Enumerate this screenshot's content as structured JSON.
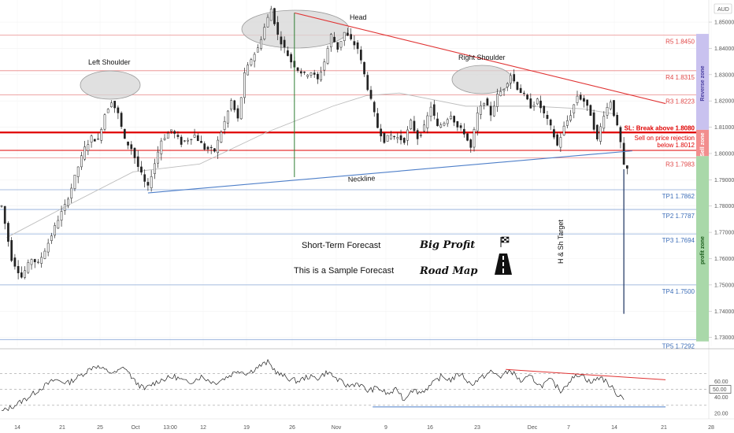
{
  "currency": "AUD",
  "chart_data": [
    {
      "type": "line",
      "subtype": "candlestick",
      "title": "",
      "xlabel": "",
      "ylabel": "",
      "x_ticks": [
        "14",
        "21",
        "25",
        "Oct",
        "13:00",
        "12",
        "19",
        "26",
        "Nov",
        "9",
        "16",
        "23",
        "Dec",
        "7",
        "14",
        "21",
        "28"
      ],
      "y_ticks": [
        "1.85000",
        "1.84000",
        "1.83000",
        "1.82000",
        "1.81000",
        "1.80000",
        "1.79000",
        "1.78000",
        "1.77000",
        "1.76000",
        "1.75000",
        "1.74000",
        "1.73000"
      ],
      "ylim": [
        1.7275,
        1.8575
      ],
      "grid": true,
      "price_path": [
        [
          0,
          1.78
        ],
        [
          3,
          1.76
        ],
        [
          6,
          1.753
        ],
        [
          9,
          1.76
        ],
        [
          11,
          1.758
        ],
        [
          14,
          1.766
        ],
        [
          17,
          1.775
        ],
        [
          19,
          1.78
        ],
        [
          21,
          1.787
        ],
        [
          23,
          1.795
        ],
        [
          25,
          1.802
        ],
        [
          27,
          1.806
        ],
        [
          29,
          1.805
        ],
        [
          31,
          1.815
        ],
        [
          33,
          1.82
        ],
        [
          35,
          1.815
        ],
        [
          37,
          1.805
        ],
        [
          39,
          1.802
        ],
        [
          41,
          1.795
        ],
        [
          43,
          1.789
        ],
        [
          44,
          1.787
        ],
        [
          45,
          1.792
        ],
        [
          48,
          1.805
        ],
        [
          51,
          1.809
        ],
        [
          54,
          1.804
        ],
        [
          58,
          1.807
        ],
        [
          61,
          1.802
        ],
        [
          64,
          1.801
        ],
        [
          67,
          1.812
        ],
        [
          69,
          1.82
        ],
        [
          71,
          1.813
        ],
        [
          73,
          1.83
        ],
        [
          75,
          1.836
        ],
        [
          77,
          1.84
        ],
        [
          79,
          1.848
        ],
        [
          81,
          1.855
        ],
        [
          83,
          1.845
        ],
        [
          85,
          1.84
        ],
        [
          87,
          1.835
        ],
        [
          89,
          1.832
        ],
        [
          91,
          1.83
        ],
        [
          93,
          1.831
        ],
        [
          95,
          1.828
        ],
        [
          97,
          1.835
        ],
        [
          99,
          1.845
        ],
        [
          101,
          1.84
        ],
        [
          103,
          1.846
        ],
        [
          105,
          1.843
        ],
        [
          107,
          1.84
        ],
        [
          109,
          1.83
        ],
        [
          111,
          1.82
        ],
        [
          113,
          1.81
        ],
        [
          115,
          1.805
        ],
        [
          117,
          1.807
        ],
        [
          119,
          1.806
        ],
        [
          121,
          1.805
        ],
        [
          123,
          1.812
        ],
        [
          125,
          1.806
        ],
        [
          127,
          1.81
        ],
        [
          129,
          1.818
        ],
        [
          131,
          1.81
        ],
        [
          133,
          1.812
        ],
        [
          135,
          1.815
        ],
        [
          137,
          1.81
        ],
        [
          139,
          1.808
        ],
        [
          141,
          1.802
        ],
        [
          143,
          1.815
        ],
        [
          145,
          1.82
        ],
        [
          147,
          1.815
        ],
        [
          149,
          1.822
        ],
        [
          151,
          1.825
        ],
        [
          153,
          1.83
        ],
        [
          155,
          1.825
        ],
        [
          157,
          1.822
        ],
        [
          159,
          1.818
        ],
        [
          161,
          1.82
        ],
        [
          163,
          1.815
        ],
        [
          165,
          1.81
        ],
        [
          167,
          1.803
        ],
        [
          169,
          1.81
        ],
        [
          171,
          1.815
        ],
        [
          173,
          1.822
        ],
        [
          175,
          1.82
        ],
        [
          177,
          1.815
        ],
        [
          179,
          1.805
        ],
        [
          181,
          1.815
        ],
        [
          183,
          1.82
        ],
        [
          185,
          1.81
        ],
        [
          186,
          1.804
        ],
        [
          187,
          1.795
        ],
        [
          188,
          1.794
        ]
      ],
      "moving_average": [
        [
          2,
          1.768
        ],
        [
          20,
          1.78
        ],
        [
          40,
          1.793
        ],
        [
          60,
          1.796
        ],
        [
          80,
          1.808
        ],
        [
          100,
          1.818
        ],
        [
          110,
          1.822
        ],
        [
          120,
          1.823
        ],
        [
          140,
          1.818
        ],
        [
          160,
          1.818
        ],
        [
          175,
          1.817
        ],
        [
          185,
          1.815
        ]
      ],
      "wick_target": [
        187,
        1.739
      ],
      "neckline": [
        [
          44,
          1.785
        ],
        [
          190,
          1.801
        ]
      ],
      "right_trendline": [
        [
          88,
          1.8535
        ],
        [
          200,
          1.819
        ]
      ],
      "head_marker": [
        [
          88,
          1.8535
        ],
        [
          88,
          1.791
        ]
      ],
      "levels": [
        {
          "label": "R5 1.8450",
          "value": 1.845,
          "color": "#e05555",
          "text_color": "#e04848",
          "line_width": 0.8
        },
        {
          "label": "R4 1.8315",
          "value": 1.8315,
          "color": "#e05555",
          "text_color": "#e04848",
          "line_width": 0.8
        },
        {
          "label": "R3 1.8223",
          "value": 1.8223,
          "color": "#e05555",
          "text_color": "#e04848",
          "line_width": 0.8
        },
        {
          "label": "SL: Break above 1.8080",
          "value": 1.808,
          "color": "#e00000",
          "text_color": "#e00000",
          "line_width": 2.2
        },
        {
          "label": "R3 1.7983",
          "value": 1.7983,
          "color": "#e05555",
          "text_color": "#e04848",
          "line_width": 0.8
        },
        {
          "label": "TP1 1.7862",
          "value": 1.7862,
          "color": "#5a86c8",
          "text_color": "#3d6eb8",
          "line_width": 0.8
        },
        {
          "label": "TP2 1.7787",
          "value": 1.7787,
          "color": "#5a86c8",
          "text_color": "#3d6eb8",
          "line_width": 0.8
        },
        {
          "label": "TP3 1.7694",
          "value": 1.7694,
          "color": "#5a86c8",
          "text_color": "#3d6eb8",
          "line_width": 0.8
        },
        {
          "label": "TP4 1.7500",
          "value": 1.75,
          "color": "#5a86c8",
          "text_color": "#3d6eb8",
          "line_width": 0.8
        },
        {
          "label": "TP5 1.7292",
          "value": 1.7292,
          "color": "#5a86c8",
          "text_color": "#3d6eb8",
          "line_width": 0.8
        }
      ],
      "sell_level": {
        "value": 1.8012,
        "color": "#e00000",
        "label_line1": "Sell on price rejection",
        "label_line2": "below  1.8012"
      },
      "zones": [
        {
          "label": "Reverse zone",
          "from": 1.8455,
          "to": 1.809,
          "color": "#c9c2ef",
          "text_color": "#4a3fa0"
        },
        {
          "label": "Sell zone",
          "from": 1.809,
          "to": 1.799,
          "color": "#f28e8e",
          "text_color": "#ffffff"
        },
        {
          "label": "profit zone",
          "from": 1.799,
          "to": 1.7285,
          "color": "#a9d8a9",
          "text_color": "#1e5e1e"
        }
      ],
      "annotations": [
        {
          "text": "Head",
          "role": "head"
        },
        {
          "text": "Left Shoulder",
          "role": "left"
        },
        {
          "text": "Right Shoulder",
          "role": "right"
        },
        {
          "text": "Neckline",
          "role": "neck"
        },
        {
          "text": "H & Sh Target",
          "role": "target"
        }
      ],
      "forecast": {
        "line1": "Short-Term Forecast",
        "line2": "This is a Sample Forecast",
        "brand1": "Big Profit",
        "brand2": "Road Map"
      }
    },
    {
      "type": "line",
      "title": "",
      "ylim": [
        15,
        95
      ],
      "y_ticks": [
        "60.00",
        "50.00",
        "40.00",
        "20.00"
      ],
      "reference_lines": [
        70,
        50,
        30
      ],
      "value_label": "50.00",
      "series_path": [
        [
          0,
          22
        ],
        [
          4,
          30
        ],
        [
          8,
          40
        ],
        [
          12,
          52
        ],
        [
          16,
          62
        ],
        [
          20,
          58
        ],
        [
          24,
          68
        ],
        [
          28,
          80
        ],
        [
          31,
          74
        ],
        [
          34,
          70
        ],
        [
          37,
          78
        ],
        [
          40,
          60
        ],
        [
          43,
          50
        ],
        [
          45,
          56
        ],
        [
          48,
          62
        ],
        [
          52,
          66
        ],
        [
          56,
          58
        ],
        [
          60,
          66
        ],
        [
          64,
          58
        ],
        [
          68,
          66
        ],
        [
          71,
          74
        ],
        [
          74,
          70
        ],
        [
          77,
          78
        ],
        [
          80,
          84
        ],
        [
          83,
          70
        ],
        [
          86,
          64
        ],
        [
          89,
          60
        ],
        [
          92,
          66
        ],
        [
          95,
          64
        ],
        [
          98,
          72
        ],
        [
          101,
          62
        ],
        [
          104,
          54
        ],
        [
          107,
          58
        ],
        [
          110,
          48
        ],
        [
          113,
          52
        ],
        [
          116,
          44
        ],
        [
          119,
          50
        ],
        [
          121,
          36
        ],
        [
          123,
          50
        ],
        [
          126,
          46
        ],
        [
          129,
          55
        ],
        [
          132,
          66
        ],
        [
          135,
          62
        ],
        [
          138,
          70
        ],
        [
          141,
          56
        ],
        [
          144,
          64
        ],
        [
          147,
          72
        ],
        [
          150,
          66
        ],
        [
          153,
          74
        ],
        [
          156,
          60
        ],
        [
          159,
          66
        ],
        [
          162,
          54
        ],
        [
          165,
          62
        ],
        [
          168,
          48
        ],
        [
          171,
          62
        ],
        [
          174,
          70
        ],
        [
          177,
          58
        ],
        [
          180,
          66
        ],
        [
          183,
          54
        ],
        [
          185,
          44
        ],
        [
          187,
          40
        ]
      ],
      "upper_trend": [
        [
          152,
          75
        ],
        [
          200,
          62
        ]
      ],
      "lower_trend": [
        [
          112,
          28
        ],
        [
          200,
          28
        ]
      ]
    }
  ]
}
